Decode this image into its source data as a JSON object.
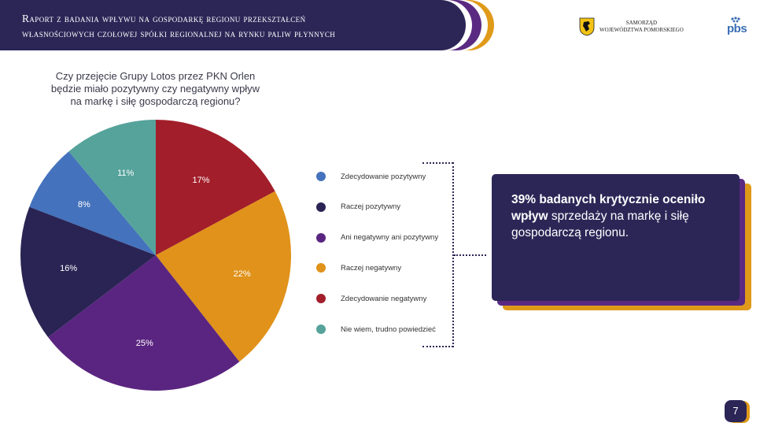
{
  "header": {
    "title_line1": "Raport z badania wpływu na gospodarkę regionu przekształceń",
    "title_line2": "własnościowych czołowej spółki regionalnej na rynku paliw płynnych"
  },
  "logos": {
    "samorzad_line1": "SAMORZĄD",
    "samorzad_line2": "WOJEWÓDZTWA POMORSKIEGO",
    "pbs": "pbs"
  },
  "question": {
    "line1": "Czy przejęcie Grupy Lotos przez PKN Orlen",
    "line2": "będzie miało pozytywny czy negatywny wpływ",
    "line3": "na markę i siłę gospodarczą regionu?"
  },
  "chart_data": {
    "type": "pie",
    "title": "",
    "unit": "%",
    "slices": [
      {
        "name": "Zdecydowanie negatywny",
        "value": 17,
        "label": "17%",
        "color": "#A21E2A",
        "label_color": "#ffffff"
      },
      {
        "name": "Raczej negatywny",
        "value": 22,
        "label": "22%",
        "color": "#E0921A",
        "label_color": "#ffffff"
      },
      {
        "name": "Ani negatywny ani pozytywny",
        "value": 25,
        "label": "25%",
        "color": "#5A2580",
        "label_color": "#ffffff"
      },
      {
        "name": "Raczej pozytywny",
        "value": 16,
        "label": "16%",
        "color": "#2A2454",
        "label_color": "#ffffff"
      },
      {
        "name": "Zdecydowanie pozytywny",
        "value": 8,
        "label": "8%",
        "color": "#4472BC",
        "label_color": "#ffffff"
      },
      {
        "name": "Nie wiem, trudno powiedzieć",
        "value": 11,
        "label": "11%",
        "color": "#56A39B",
        "label_color": "#ffffff"
      }
    ],
    "legend": [
      {
        "label": "Zdecydowanie pozytywny",
        "color": "#4472BC"
      },
      {
        "label": "Raczej pozytywny",
        "color": "#2A2454"
      },
      {
        "label": "Ani negatywny ani pozytywny",
        "color": "#5A2580"
      },
      {
        "label": "Raczej negatywny",
        "color": "#E0921A"
      },
      {
        "label": "Zdecydowanie negatywny",
        "color": "#A21E2A"
      },
      {
        "label": "Nie wiem, trudno powiedzieć",
        "color": "#56A39B"
      }
    ],
    "legend_position": "right"
  },
  "callout": {
    "bold_text": "39% badanych krytycznie oceniło wpływ",
    "rest_text": " sprzedaży na markę i siłę gospodarczą regionu."
  },
  "footer": {
    "page_number": "7"
  },
  "colors": {
    "navy": "#2C2657",
    "purple": "#5A2A82",
    "orange": "#E09A1A"
  }
}
